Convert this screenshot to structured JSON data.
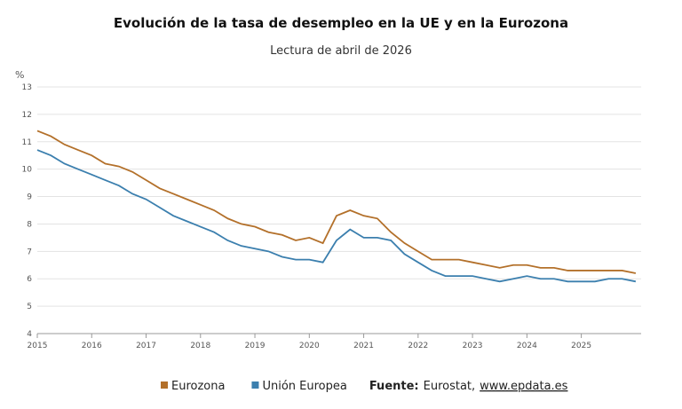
{
  "chart_data": {
    "type": "line",
    "title": "Evolución de la tasa de desempleo en la UE y en la Eurozona",
    "subtitle": "Lectura de abril de 2026",
    "y_label": "%",
    "x": [
      2015,
      2015.25,
      2015.5,
      2015.75,
      2016,
      2016.25,
      2016.5,
      2016.75,
      2017,
      2017.25,
      2017.5,
      2017.75,
      2018,
      2018.25,
      2018.5,
      2018.75,
      2019,
      2019.25,
      2019.5,
      2019.75,
      2020,
      2020.25,
      2020.5,
      2020.75,
      2021,
      2021.25,
      2021.5,
      2021.75,
      2022,
      2022.25,
      2022.5,
      2022.75,
      2023,
      2023.25,
      2023.5,
      2023.75,
      2024,
      2024.25,
      2024.5,
      2024.75,
      2025,
      2025.25,
      2025.5,
      2025.75,
      2026
    ],
    "series": [
      {
        "name": "Eurozona",
        "color": "#b3702a",
        "values": [
          11.4,
          11.2,
          10.9,
          10.7,
          10.5,
          10.2,
          10.1,
          9.9,
          9.6,
          9.3,
          9.1,
          8.9,
          8.7,
          8.5,
          8.2,
          8.0,
          7.9,
          7.7,
          7.6,
          7.4,
          7.5,
          7.3,
          8.3,
          8.5,
          8.3,
          8.2,
          7.7,
          7.3,
          7.0,
          6.7,
          6.7,
          6.7,
          6.6,
          6.5,
          6.4,
          6.5,
          6.5,
          6.4,
          6.4,
          6.3,
          6.3,
          6.3,
          6.3,
          6.3,
          6.2
        ]
      },
      {
        "name": "Unión Europea",
        "color": "#3b7fae",
        "values": [
          10.7,
          10.5,
          10.2,
          10.0,
          9.8,
          9.6,
          9.4,
          9.1,
          8.9,
          8.6,
          8.3,
          8.1,
          7.9,
          7.7,
          7.4,
          7.2,
          7.1,
          7.0,
          6.8,
          6.7,
          6.7,
          6.6,
          7.4,
          7.8,
          7.5,
          7.5,
          7.4,
          6.9,
          6.6,
          6.3,
          6.1,
          6.1,
          6.1,
          6.0,
          5.9,
          6.0,
          6.1,
          6.0,
          6.0,
          5.9,
          5.9,
          5.9,
          6.0,
          6.0,
          5.9
        ]
      }
    ],
    "xlim": [
      2015,
      2026.1
    ],
    "xticks": [
      2015,
      2016,
      2017,
      2018,
      2019,
      2020,
      2021,
      2022,
      2023,
      2024,
      2025
    ],
    "ylim": [
      4,
      13
    ],
    "yticks": [
      4,
      5,
      6,
      7,
      8,
      9,
      10,
      11,
      12,
      13
    ],
    "grid": true,
    "source_label": "Fuente:",
    "source_text": "Eurostat,",
    "source_link": "www.epdata.es"
  }
}
